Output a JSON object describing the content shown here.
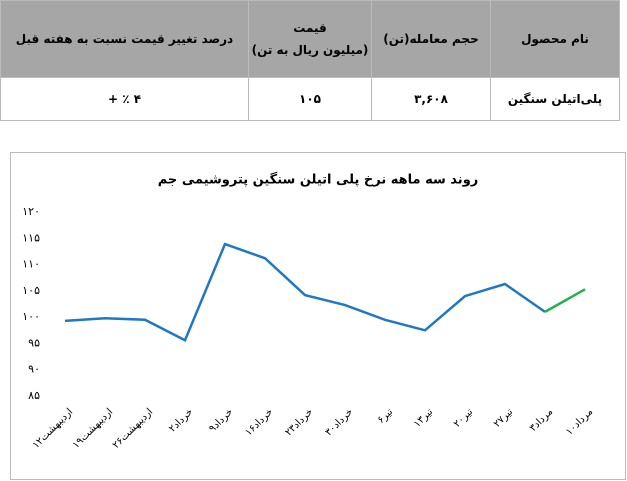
{
  "table": {
    "header": [
      "نام محصول",
      "حجم معامله(تن)",
      "قیمت",
      "(میلیون ریال به تن)",
      "درصد تغییر قیمت نسبت به هفته قبل"
    ],
    "rows": [
      [
        "پلی‌اتیلن سنگین",
        "۳,۶۰۸",
        "۱۰۵",
        "۴ ٪ +"
      ]
    ]
  },
  "chart_data": {
    "type": "line",
    "title": "روند سه ماهه نرخ پلی اتیلن سنگین پتروشیمی جم",
    "categories": [
      "۱۲اردیبهشت",
      "۱۹اردیبهشت",
      "۲۶اردیبهشت",
      "۲خرداد",
      "۹خرداد",
      "۱۶خرداد",
      "۲۳خرداد",
      "۳۰خرداد",
      "۶تیر",
      "۱۳تیر",
      "۲۰تیر",
      "۲۷تیر",
      "۳مرداد",
      "۱۰مرداد"
    ],
    "series": [
      {
        "color": "#1f78c1",
        "values": [
          99.3,
          99.8,
          99.5,
          95.6,
          113.9,
          111.2,
          104.2,
          102.3,
          99.5,
          97.5,
          104,
          106.3,
          101,
          null
        ]
      },
      {
        "color": "#22b14c",
        "values": [
          null,
          null,
          null,
          null,
          null,
          null,
          null,
          null,
          null,
          null,
          null,
          null,
          101,
          105.3
        ]
      }
    ],
    "ylim": [
      85,
      120
    ],
    "yticks": [
      {
        "value": 85,
        "label": "۸۵"
      },
      {
        "value": 90,
        "label": "۹۰"
      },
      {
        "value": 95,
        "label": "۹۵"
      },
      {
        "value": 100,
        "label": "۱۰۰"
      },
      {
        "value": 105,
        "label": "۱۰۵"
      },
      {
        "value": 110,
        "label": "۱۱۰"
      },
      {
        "value": 115,
        "label": "۱۱۵"
      },
      {
        "value": 120,
        "label": "۱۲۰"
      }
    ],
    "grid": false
  }
}
